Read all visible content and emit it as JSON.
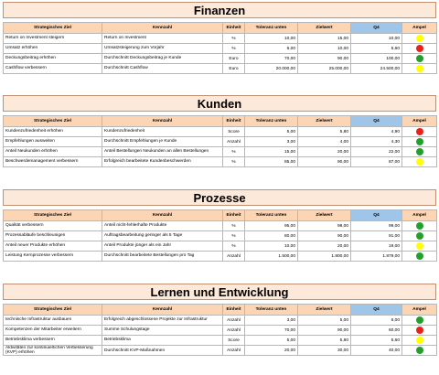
{
  "columns": [
    "Strategisches Ziel",
    "Kennzahl",
    "Einheit",
    "Toleranz unten",
    "Zielwert",
    "Q4",
    "Ampel"
  ],
  "colors": {
    "red": "#e8221b",
    "yellow": "#ffff00",
    "green": "#22a02e"
  },
  "sections": [
    {
      "title": "Finanzen",
      "rows": [
        {
          "ziel": "Return on Investment steigern",
          "kennzahl": "Return on Investment",
          "einheit": "%",
          "toleranz": "10,00",
          "zielwert": "15,00",
          "q4": "10,00",
          "ampel": "yellow"
        },
        {
          "ziel": "Umsatz erhöhen",
          "kennzahl": "Umsatzsteigerung zum Vorjahr",
          "einheit": "%",
          "toleranz": "6,00",
          "zielwert": "10,00",
          "q4": "5,60",
          "ampel": "red"
        },
        {
          "ziel": "Deckungsbeitrag erhöhen",
          "kennzahl": "Durchschnitt Deckungsbeitrag je Kunde",
          "einheit": "Euro",
          "toleranz": "70,00",
          "zielwert": "90,00",
          "q4": "100,00",
          "ampel": "green"
        },
        {
          "ziel": "Cashflow verbessern",
          "kennzahl": "Durchschnitt Cashflow",
          "einheit": "Euro",
          "toleranz": "20.000,00",
          "zielwert": "25.000,00",
          "q4": "24.500,00",
          "ampel": "yellow"
        }
      ]
    },
    {
      "title": "Kunden",
      "rows": [
        {
          "ziel": "Kundenzufriedenheit erhöhen",
          "kennzahl": "Kundenzufriedenheit",
          "einheit": "Score",
          "toleranz": "5,00",
          "zielwert": "5,80",
          "q4": "4,90",
          "ampel": "red"
        },
        {
          "ziel": "Empfehlungen ausweiten",
          "kennzahl": "Durchschnitt Empfehlungen je Kunde",
          "einheit": "Anzahl",
          "toleranz": "3,00",
          "zielwert": "4,00",
          "q4": "4,30",
          "ampel": "green"
        },
        {
          "ziel": "Anteil Neukunden erhöhen",
          "kennzahl": "Anteil Bestellungen Neukunden an allen Bestellungen",
          "einheit": "%",
          "toleranz": "15,00",
          "zielwert": "20,00",
          "q4": "22,00",
          "ampel": "green"
        },
        {
          "ziel": "Beschwerdemanagement verbessern",
          "kennzahl": "Erfolgreich bearbeitete Kundenbeschwerden",
          "einheit": "%",
          "toleranz": "85,00",
          "zielwert": "90,00",
          "q4": "87,00",
          "ampel": "yellow"
        }
      ]
    },
    {
      "title": "Prozesse",
      "rows": [
        {
          "ziel": "Qualität verbessern",
          "kennzahl": "Anteil nicht-fehlerhafte Produkte",
          "einheit": "%",
          "toleranz": "95,00",
          "zielwert": "98,00",
          "q4": "99,00",
          "ampel": "green"
        },
        {
          "ziel": "Prozessabläufe beschleunigen",
          "kennzahl": "Auftragsbearbeitung geringer als 5 Tage",
          "einheit": "%",
          "toleranz": "80,00",
          "zielwert": "90,00",
          "q4": "91,00",
          "ampel": "green"
        },
        {
          "ziel": "Anteil neuer Produkte erhöhen",
          "kennzahl": "Anteil Produkte jünger als ein Jahr",
          "einheit": "%",
          "toleranz": "10,00",
          "zielwert": "20,00",
          "q4": "19,00",
          "ampel": "yellow"
        },
        {
          "ziel": "Leistung Kernprozesse verbessern",
          "kennzahl": "Durchschnitt bearbeitete Bestellungen pro Tag",
          "einheit": "Anzahl",
          "toleranz": "1.500,00",
          "zielwert": "1.800,00",
          "q4": "1.879,00",
          "ampel": "green"
        }
      ]
    },
    {
      "title": "Lernen und Entwicklung",
      "rows": [
        {
          "ziel": "technische Infrastruktur ausbauen",
          "kennzahl": "Erfolgreich abgeschlossene Projekte zur Infrastruktur",
          "einheit": "Anzahl",
          "toleranz": "3,00",
          "zielwert": "5,00",
          "q4": "6,00",
          "ampel": "green"
        },
        {
          "ziel": "Kompetenzen der Mitarbeiter erweitern",
          "kennzahl": "Summe Schulungstage",
          "einheit": "Anzahl",
          "toleranz": "70,00",
          "zielwert": "90,00",
          "q4": "60,00",
          "ampel": "red"
        },
        {
          "ziel": "Betriebsklima verbessern",
          "kennzahl": "Betriebsklima",
          "einheit": "Score",
          "toleranz": "5,00",
          "zielwert": "5,80",
          "q4": "5,60",
          "ampel": "yellow"
        },
        {
          "ziel": "Aktivitäten zur kontinuierlichen Verbesserung (KVP) erhöhen",
          "kennzahl": "Durchschnitt KVP-Maßnahmen",
          "einheit": "Anzahl",
          "toleranz": "20,00",
          "zielwert": "30,00",
          "q4": "40,00",
          "ampel": "green"
        }
      ]
    }
  ]
}
